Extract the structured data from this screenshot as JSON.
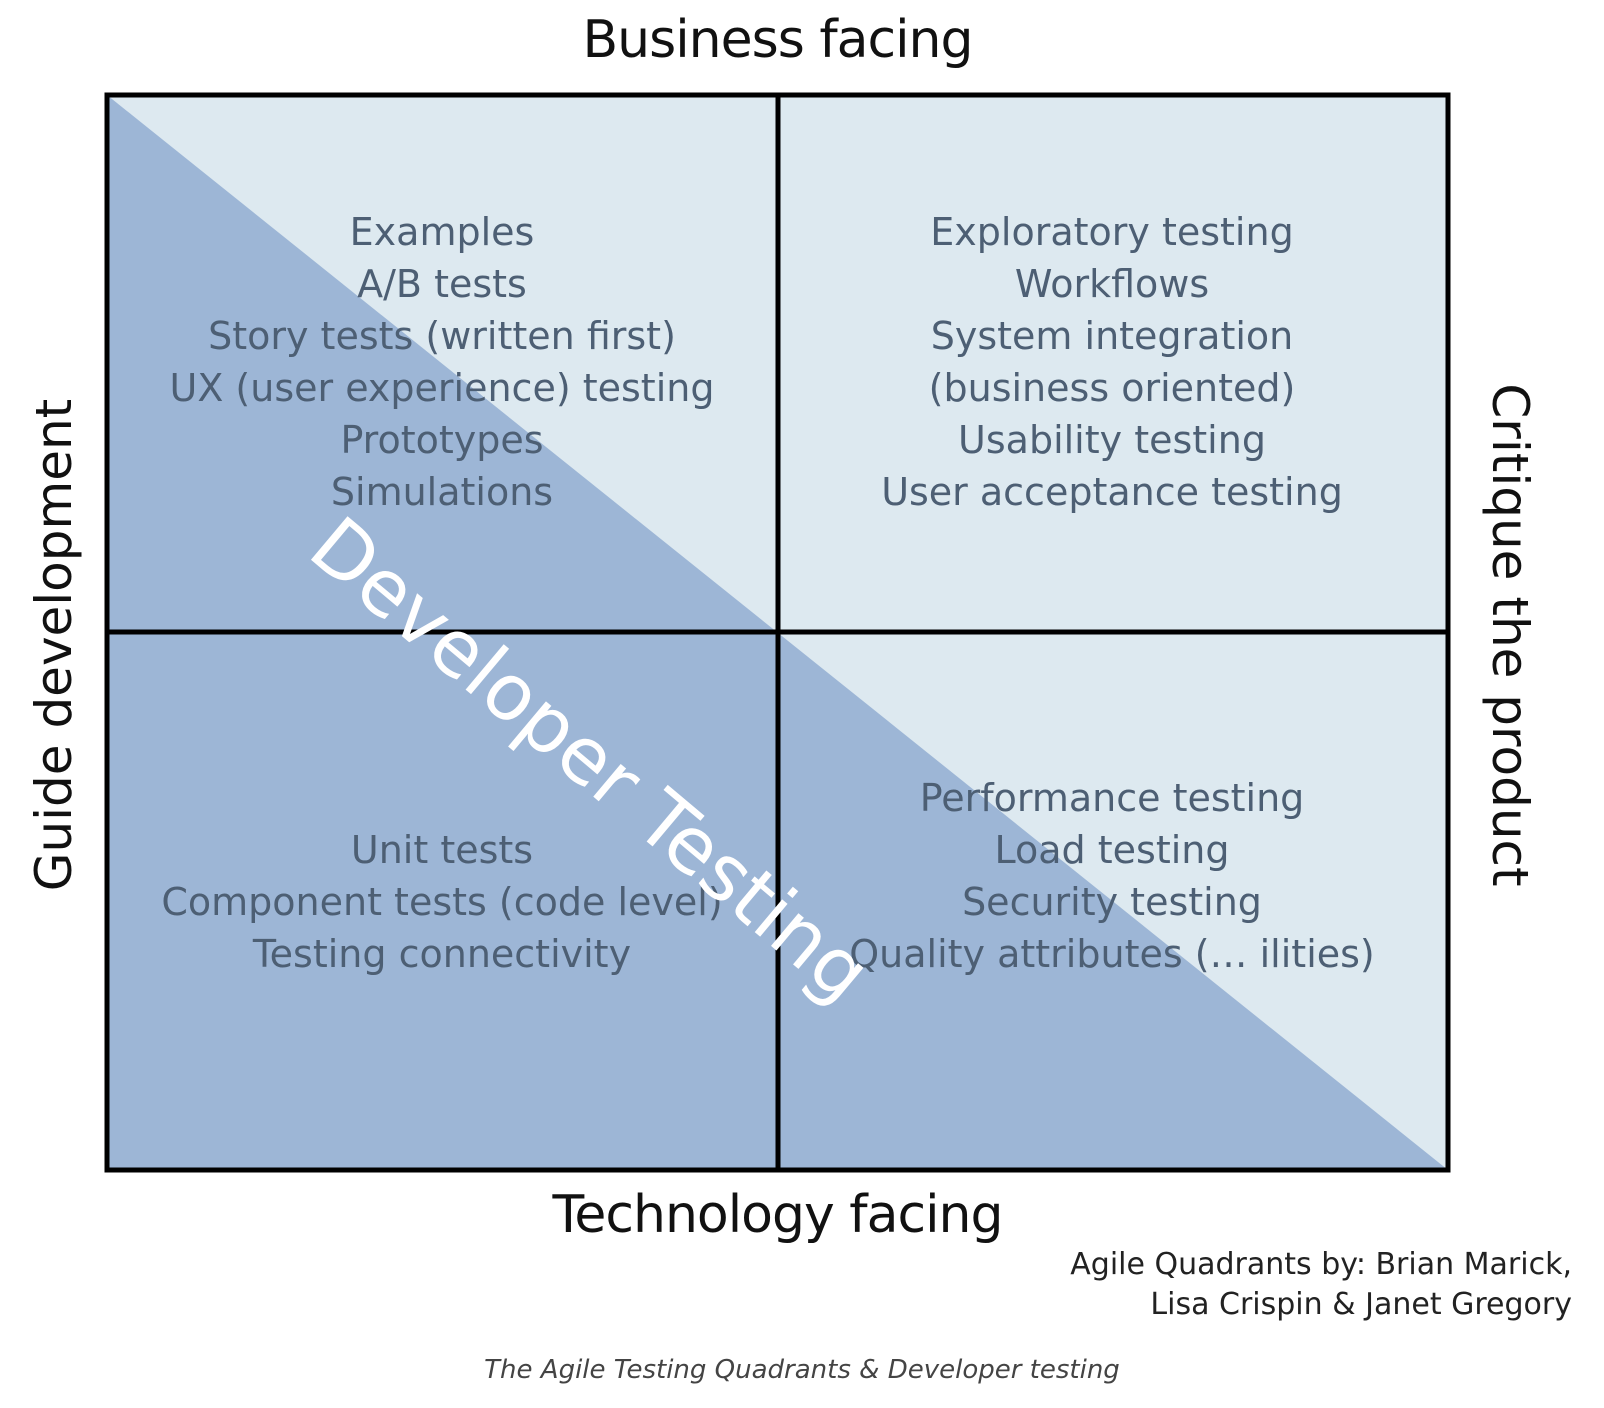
{
  "axes": {
    "top": "Business facing",
    "bottom": "Technology facing",
    "left": "Guide development",
    "right": "Critique the product"
  },
  "quadrants": {
    "top_left": [
      "Examples",
      "A/B tests",
      "Story tests (written first)",
      "UX (user experience) testing",
      "Prototypes",
      "Simulations"
    ],
    "top_right": [
      "Exploratory testing",
      "Workflows",
      "System integration",
      "(business oriented)",
      "Usability testing",
      "User acceptance testing"
    ],
    "bottom_left": [
      "Unit tests",
      "Component tests (code level)",
      "Testing connectivity"
    ],
    "bottom_right": [
      "Performance testing",
      "Load testing",
      "Security testing",
      "Quality attributes (… ilities)"
    ]
  },
  "overlay_label": "Developer Testing",
  "credit": {
    "line1": "Agile Quadrants by: Brian Marick,",
    "line2": "Lisa Crispin & Janet Gregory"
  },
  "caption": "The Agile Testing Quadrants & Developer testing",
  "colors": {
    "light_fill": "#dde9f0",
    "developer_fill": "#9db6d6",
    "grid_line": "#000000",
    "quadrant_text": "#4d5f74"
  }
}
